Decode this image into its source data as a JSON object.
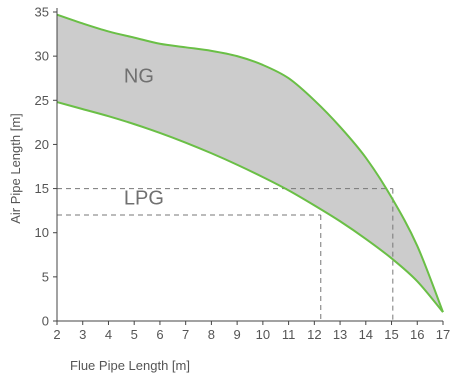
{
  "chart_data": {
    "type": "area",
    "xlabel": "Flue Pipe Length [m]",
    "ylabel": "Air Pipe Length [m]",
    "xlim": [
      2,
      17
    ],
    "ylim": [
      0,
      35
    ],
    "xticks": [
      2,
      3,
      4,
      5,
      6,
      7,
      8,
      9,
      10,
      11,
      12,
      13,
      14,
      15,
      16,
      17
    ],
    "yticks": [
      0,
      5,
      10,
      15,
      20,
      25,
      30,
      35
    ],
    "grid": false,
    "series": [
      {
        "x": [
          2,
          3,
          4,
          5,
          6,
          7,
          8,
          9,
          10,
          11,
          12,
          13,
          14,
          15,
          16,
          17
        ],
        "values": [
          34.7,
          33.7,
          32.8,
          32.1,
          31.4,
          31.0,
          30.6,
          30.0,
          29.0,
          27.5,
          25.0,
          22.0,
          18.5,
          14.0,
          8.5,
          1.0
        ]
      },
      {
        "x": [
          2,
          3,
          4,
          5,
          6,
          7,
          8,
          9,
          10,
          11,
          12,
          13,
          14,
          15,
          16,
          17
        ],
        "values": [
          24.8,
          24.0,
          23.2,
          22.3,
          21.3,
          20.2,
          19.0,
          17.7,
          16.3,
          14.8,
          13.1,
          11.3,
          9.3,
          7.1,
          4.5,
          1.0
        ]
      }
    ],
    "fill_between": true,
    "fill_color": "#cccccc",
    "line_color": "#6abf46",
    "regions": [
      {
        "label": "NG",
        "x": 4.6,
        "y": 27
      },
      {
        "label": "LPG",
        "x": 4.6,
        "y": 13.2
      }
    ],
    "reference_lines": [
      {
        "y": 15,
        "x": 15.05
      },
      {
        "y": 12,
        "x": 12.25
      }
    ]
  }
}
